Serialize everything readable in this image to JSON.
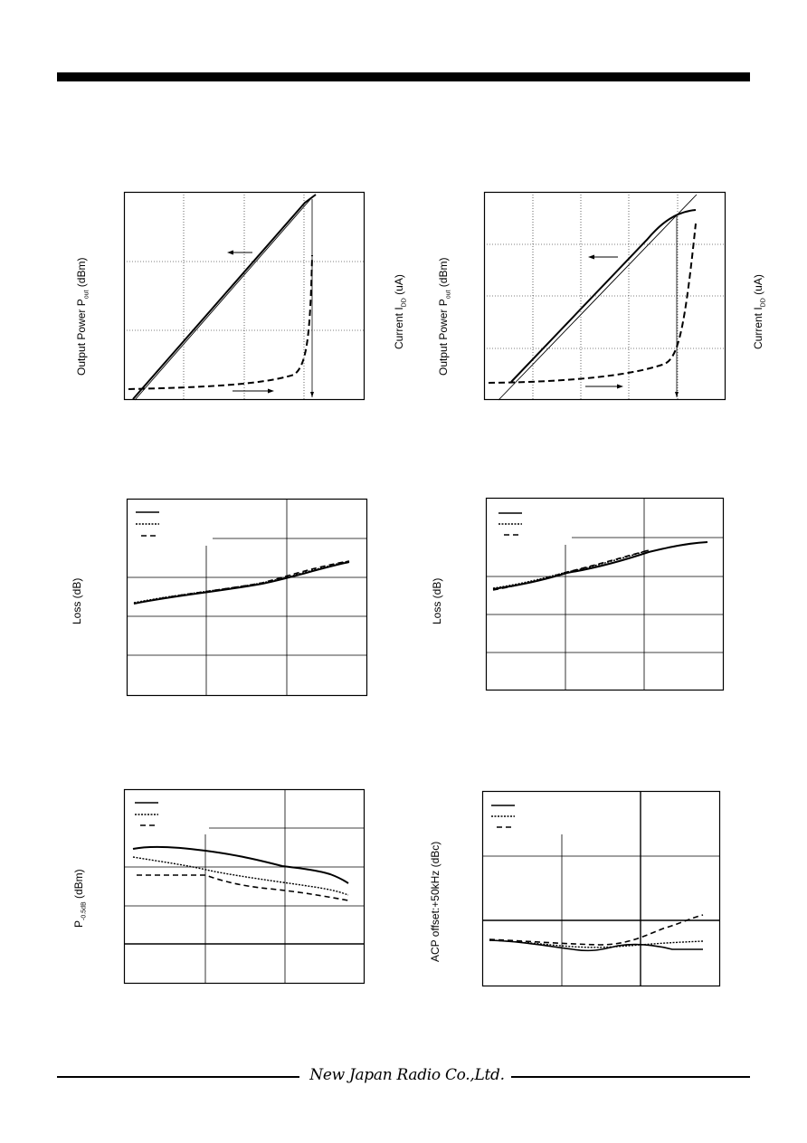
{
  "footer": {
    "company": "New Japan Radio Co.,Ltd."
  },
  "labels": {
    "output_power": "Output Power  P",
    "output_power_sub": "out",
    "output_power_unit": " (dBm)",
    "current": "Current  I",
    "current_sub": "DD",
    "current_unit": " (uA)",
    "loss": "Loss (dB)",
    "p05": "P",
    "p05_sub": "-0.5dB",
    "p05_unit": "  (dBm)",
    "acp": "ACP offset:+50kHz  (dBc)"
  },
  "chart_data": [
    {
      "type": "line",
      "series": [
        {
          "style": "solid"
        },
        {
          "style": "thin"
        },
        {
          "style": "dashed"
        }
      ],
      "notes": "Output power and current vs input (left)"
    },
    {
      "type": "line",
      "series": [
        {
          "style": "solid"
        },
        {
          "style": "thin"
        },
        {
          "style": "dashed"
        }
      ],
      "notes": "Output power and current vs input (right)"
    },
    {
      "type": "line",
      "series": [
        {
          "style": "solid"
        },
        {
          "style": "dotted"
        },
        {
          "style": "dashed"
        }
      ],
      "notes": "Loss (left)"
    },
    {
      "type": "line",
      "series": [
        {
          "style": "solid"
        },
        {
          "style": "dotted"
        },
        {
          "style": "dashed"
        }
      ],
      "notes": "Loss (right)"
    },
    {
      "type": "line",
      "series": [
        {
          "style": "solid"
        },
        {
          "style": "dotted"
        },
        {
          "style": "dashed"
        }
      ],
      "notes": "P-0.5dB"
    },
    {
      "type": "line",
      "series": [
        {
          "style": "solid"
        },
        {
          "style": "dotted"
        },
        {
          "style": "dashed"
        }
      ],
      "notes": "ACP"
    }
  ]
}
